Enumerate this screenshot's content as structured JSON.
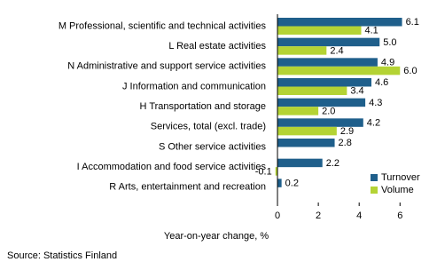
{
  "chart_data": {
    "type": "hbar",
    "categories": [
      "M Professional, scientific and technical activities",
      "L Real estate activities",
      "N Administrative and support service activities",
      "J Information and communication",
      "H Transportation and storage",
      "Services, total (excl. trade)",
      "S Other service activities",
      "I Accommodation and food service activities",
      "R Arts, entertainment and recreation"
    ],
    "series": [
      {
        "name": "Turnover",
        "color": "#1f5f8b",
        "values": [
          6.1,
          5.0,
          4.9,
          4.6,
          4.3,
          4.2,
          2.8,
          2.2,
          0.2
        ],
        "value_labels": [
          "6.1",
          "5.0",
          "4.9",
          "4.6",
          "4.3",
          "4.2",
          "2.8",
          "2.2",
          "0.2"
        ]
      },
      {
        "name": "Volume",
        "color": "#b4d334",
        "values": [
          4.1,
          2.4,
          6.0,
          3.4,
          2.0,
          2.9,
          null,
          -0.1,
          null
        ],
        "value_labels": [
          "4.1",
          "2.4",
          "6.0",
          "3.4",
          "2.0",
          "2.9",
          null,
          "-0.1",
          null
        ]
      }
    ],
    "xlabel": "Year-on-year change, %",
    "xlim": [
      -1,
      6.9
    ],
    "xticks": [
      0,
      2,
      4,
      6
    ],
    "legend": "lower right",
    "source": "Source: Statistics Finland"
  }
}
